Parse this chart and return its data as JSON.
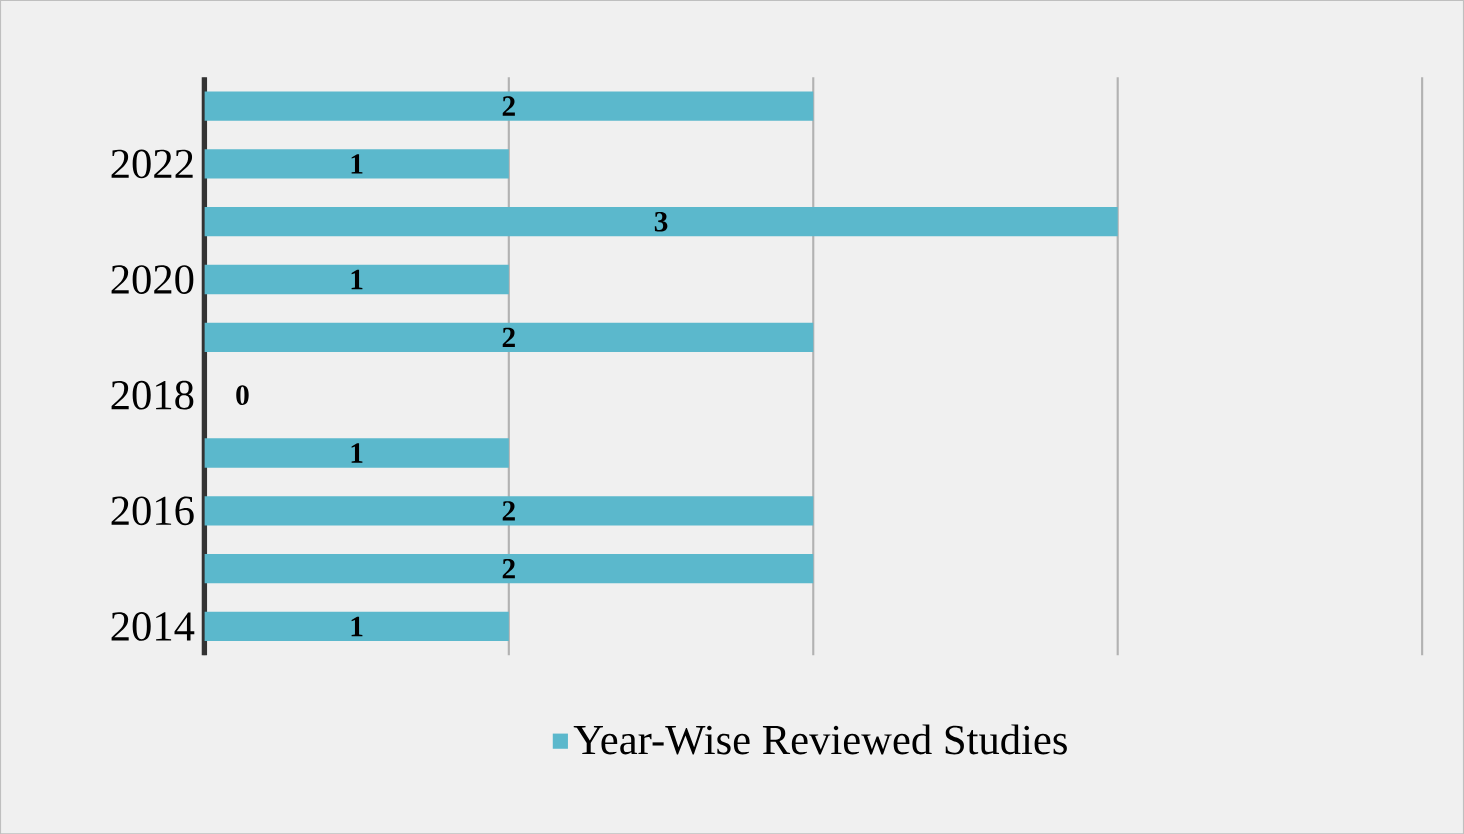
{
  "chart_data": {
    "type": "bar",
    "orientation": "horizontal",
    "categories": [
      null,
      "2022",
      null,
      "2020",
      null,
      "2018",
      null,
      "2016",
      null,
      "2014"
    ],
    "series": [
      {
        "name": "Year-Wise Reviewed Studies",
        "color": "#5bb8cc",
        "values": [
          2,
          1,
          3,
          1,
          2,
          0,
          1,
          2,
          2,
          1
        ]
      }
    ],
    "xlim": [
      0,
      4
    ],
    "xticks": [
      {
        "value": 0,
        "label": null
      },
      {
        "value": 1,
        "label": null
      },
      {
        "value": 2,
        "label": null
      },
      {
        "value": 3,
        "label": null
      },
      {
        "value": 4,
        "label": null
      }
    ],
    "tick_labels": "y",
    "grid": "x",
    "legend": "bottom",
    "data_labels": true
  }
}
